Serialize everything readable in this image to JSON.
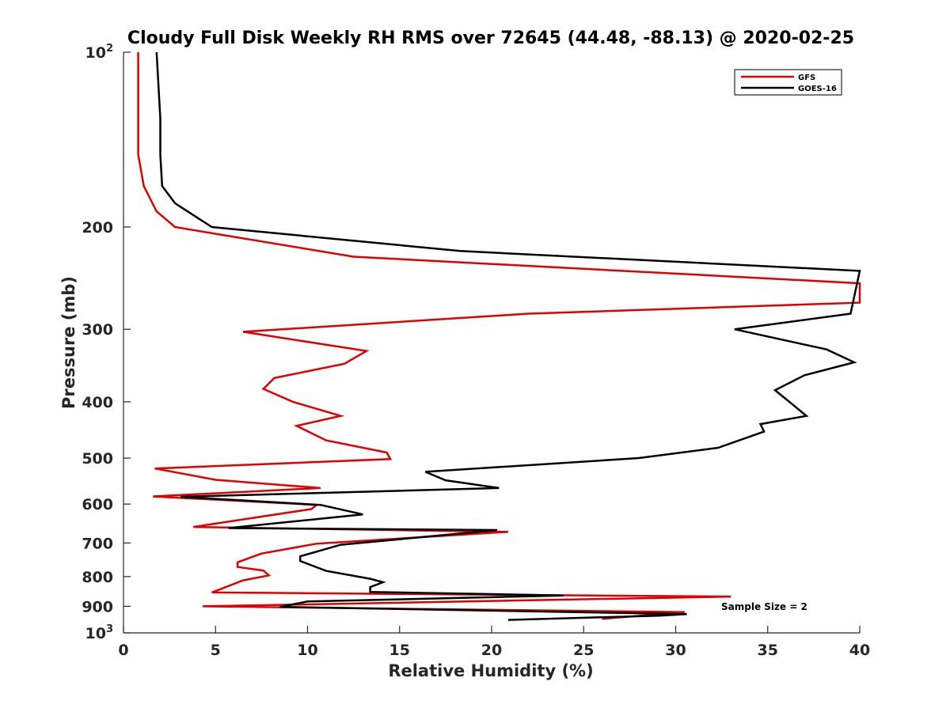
{
  "chart_data": {
    "type": "line",
    "title": "Cloudy Full Disk Weekly RH RMS over 72645 (44.48, -88.13) @ 2020-02-25",
    "xlabel": "Relative Humidity (%)",
    "ylabel": "Pressure (mb)",
    "xlim": [
      0,
      40
    ],
    "ylim": [
      100,
      1000
    ],
    "yscale": "log",
    "y_reversed": true,
    "x_ticks": [
      "0",
      "5",
      "10",
      "15",
      "20",
      "25",
      "30",
      "35",
      "40"
    ],
    "y_ticks": [
      {
        "value": 100,
        "base": "10",
        "exp": "2"
      },
      {
        "value": 200,
        "label": "200"
      },
      {
        "value": 300,
        "label": "300"
      },
      {
        "value": 400,
        "label": "400"
      },
      {
        "value": 500,
        "label": "500"
      },
      {
        "value": 600,
        "label": "600"
      },
      {
        "value": 700,
        "label": "700"
      },
      {
        "value": 800,
        "label": "800"
      },
      {
        "value": 900,
        "label": "900"
      },
      {
        "value": 1000,
        "base": "10",
        "exp": "3"
      }
    ],
    "grid": false,
    "legend_position": "top-right",
    "annotation": "Sample Size = 2",
    "series": [
      {
        "name": "GFS",
        "color": "#e00000",
        "points": [
          [
            0.8,
            100
          ],
          [
            0.8,
            150
          ],
          [
            1.1,
            170
          ],
          [
            1.8,
            188
          ],
          [
            2.8,
            200
          ],
          [
            12.5,
            225
          ],
          [
            40,
            250
          ],
          [
            40,
            270
          ],
          [
            22,
            282
          ],
          [
            6.5,
            303
          ],
          [
            13.2,
            327
          ],
          [
            12,
            344
          ],
          [
            8.2,
            364
          ],
          [
            7.6,
            380
          ],
          [
            9.2,
            400
          ],
          [
            11.8,
            423
          ],
          [
            9.4,
            440
          ],
          [
            11,
            466
          ],
          [
            14.3,
            489
          ],
          [
            14.5,
            502
          ],
          [
            1.7,
            521
          ],
          [
            5,
            545
          ],
          [
            10.7,
            563
          ],
          [
            1.6,
            582
          ],
          [
            10.5,
            602
          ],
          [
            10.2,
            612
          ],
          [
            3.8,
            657
          ],
          [
            20.9,
            670
          ],
          [
            10.5,
            702
          ],
          [
            7.5,
            730
          ],
          [
            6.2,
            756
          ],
          [
            6.2,
            770
          ],
          [
            7.6,
            781
          ],
          [
            7.9,
            796
          ],
          [
            6.5,
            812
          ],
          [
            4.8,
            852
          ],
          [
            33,
            866
          ],
          [
            4.3,
            900
          ],
          [
            30.5,
            921
          ],
          [
            26,
            946
          ]
        ]
      },
      {
        "name": "GOES-16",
        "color": "#000000",
        "points": [
          [
            1.8,
            100
          ],
          [
            2.0,
            130
          ],
          [
            2.0,
            150
          ],
          [
            2.1,
            170
          ],
          [
            2.8,
            182
          ],
          [
            4.8,
            200
          ],
          [
            18.3,
            220
          ],
          [
            40,
            238
          ],
          [
            39.5,
            282
          ],
          [
            33.2,
            300
          ],
          [
            38.2,
            325
          ],
          [
            39.7,
            342
          ],
          [
            37,
            360
          ],
          [
            35.4,
            382
          ],
          [
            36.3,
            403
          ],
          [
            37.1,
            423
          ],
          [
            34.6,
            437
          ],
          [
            34.8,
            450
          ],
          [
            32.3,
            480
          ],
          [
            28,
            500
          ],
          [
            16.4,
            528
          ],
          [
            17.5,
            546
          ],
          [
            20.4,
            563
          ],
          [
            3.1,
            583
          ],
          [
            10.7,
            602
          ],
          [
            13,
            625
          ],
          [
            5.7,
            660
          ],
          [
            20.3,
            665
          ],
          [
            11.8,
            705
          ],
          [
            9.6,
            738
          ],
          [
            9.6,
            752
          ],
          [
            11,
            782
          ],
          [
            13.4,
            807
          ],
          [
            14.1,
            818
          ],
          [
            13.4,
            834
          ],
          [
            13.4,
            850
          ],
          [
            23.9,
            862
          ],
          [
            10,
            883
          ],
          [
            8.5,
            902
          ],
          [
            30.6,
            928
          ],
          [
            29.1,
            934
          ],
          [
            20.9,
            950
          ]
        ]
      }
    ]
  }
}
